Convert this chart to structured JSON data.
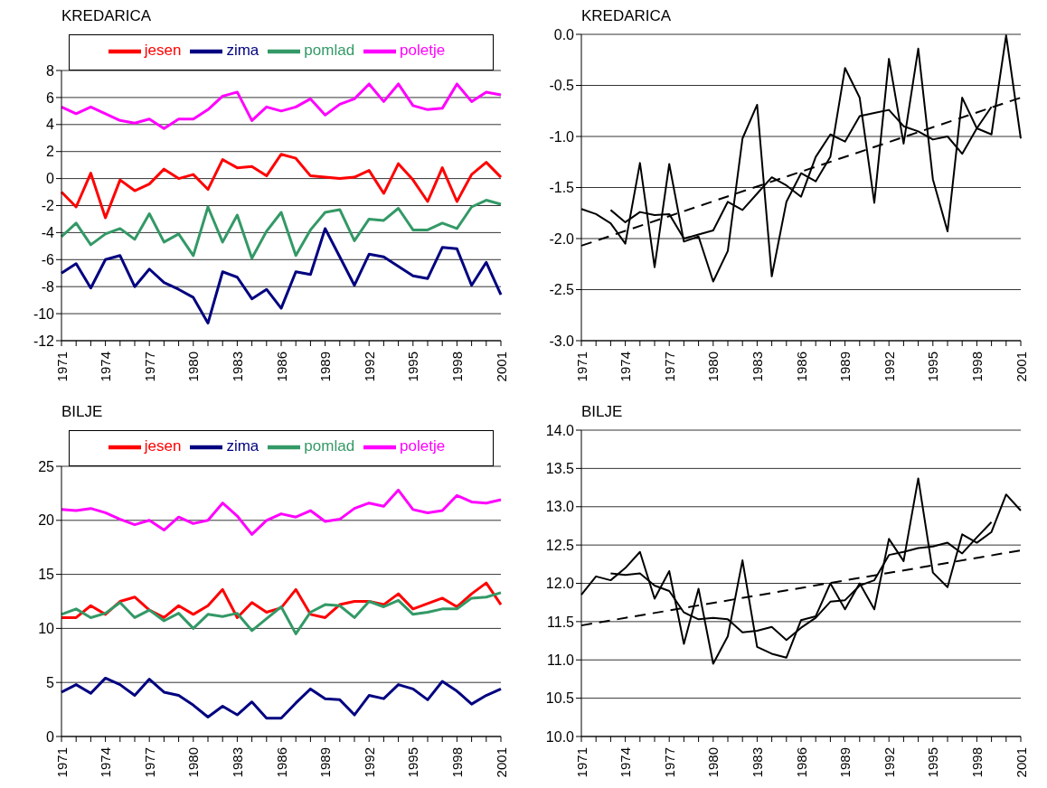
{
  "chart_data": [
    {
      "type": "line",
      "title": "KREDARICA",
      "categories": [
        "1971",
        null,
        null,
        "1974",
        null,
        null,
        "1977",
        null,
        null,
        "1980",
        null,
        null,
        "1983",
        null,
        null,
        "1986",
        null,
        null,
        "1989",
        null,
        null,
        "1992",
        null,
        null,
        "1995",
        null,
        null,
        "1998",
        null,
        null,
        "2001"
      ],
      "ylim": [
        -12,
        8
      ],
      "yticks": [
        -12,
        -10,
        -8,
        -6,
        -4,
        -2,
        0,
        2,
        4,
        6,
        8
      ],
      "grid": "y",
      "legend": "top",
      "marker": "none",
      "series": [
        {
          "name": "jesen",
          "color": "#ff0000",
          "values": [
            -1.0,
            -2.1,
            0.4,
            -2.9,
            -0.1,
            -0.9,
            -0.4,
            0.7,
            0.0,
            0.3,
            -0.8,
            1.4,
            0.8,
            0.9,
            0.2,
            1.8,
            1.5,
            0.2,
            0.1,
            0.0,
            0.1,
            0.6,
            -1.1,
            1.1,
            -0.1,
            -1.7,
            0.8,
            -1.7,
            0.3,
            1.2,
            0.1
          ]
        },
        {
          "name": "zima",
          "color": "#000080",
          "values": [
            -7.0,
            -6.3,
            -8.1,
            -6.0,
            -5.7,
            -8.0,
            -6.7,
            -7.7,
            -8.2,
            -8.8,
            -10.7,
            -6.9,
            -7.3,
            -8.9,
            -8.2,
            -9.6,
            -6.9,
            -7.1,
            -3.7,
            -5.8,
            -7.9,
            -5.6,
            -5.8,
            -6.5,
            -7.2,
            -7.4,
            -5.1,
            -5.2,
            -7.9,
            -6.2,
            -8.6
          ]
        },
        {
          "name": "pomlad",
          "color": "#339966",
          "values": [
            -4.3,
            -3.3,
            -4.9,
            -4.1,
            -3.7,
            -4.5,
            -2.6,
            -4.7,
            -4.1,
            -5.7,
            -2.1,
            -4.7,
            -2.7,
            -5.9,
            -3.9,
            -2.5,
            -5.7,
            -3.8,
            -2.5,
            -2.3,
            -4.6,
            -3.0,
            -3.1,
            -2.2,
            -3.8,
            -3.8,
            -3.3,
            -3.7,
            -2.1,
            -1.6,
            -1.9
          ]
        },
        {
          "name": "poletje",
          "color": "#ff00ff",
          "values": [
            5.3,
            4.8,
            5.3,
            4.8,
            4.3,
            4.1,
            4.4,
            3.7,
            4.4,
            4.4,
            5.1,
            6.1,
            6.4,
            4.3,
            5.3,
            5.0,
            5.3,
            5.9,
            4.7,
            5.5,
            5.9,
            7.0,
            5.7,
            7.0,
            5.4,
            5.1,
            5.2,
            7.0,
            5.7,
            6.4,
            6.2
          ]
        }
      ]
    },
    {
      "type": "line",
      "title": "KREDARICA",
      "categories": [
        "1971",
        null,
        null,
        "1974",
        null,
        null,
        "1977",
        null,
        null,
        "1980",
        null,
        null,
        "1983",
        null,
        null,
        "1986",
        null,
        null,
        "1989",
        null,
        null,
        "1992",
        null,
        null,
        "1995",
        null,
        null,
        "1998",
        null,
        null,
        "2001"
      ],
      "ylim": [
        -3,
        0
      ],
      "yticks": [
        {
          "value": -3,
          "label": "-3.0"
        },
        -2.5,
        {
          "value": -2,
          "label": "-2.0"
        },
        -1.5,
        {
          "value": -1,
          "label": "-1.0"
        },
        -0.5,
        {
          "value": 0,
          "label": "0.0"
        }
      ],
      "grid": "y",
      "marker": "none",
      "series": [
        {
          "color": "#000000",
          "line_style": "solid",
          "values": [
            -1.71,
            -1.76,
            -1.85,
            -2.05,
            -1.26,
            -2.28,
            -1.27,
            -2.03,
            -1.98,
            -2.42,
            -2.12,
            -1.02,
            -0.69,
            -2.37,
            -1.64,
            -1.36,
            -1.44,
            -1.2,
            -0.33,
            -0.62,
            -1.65,
            -0.24,
            -1.07,
            -0.14,
            -1.42,
            -1.93,
            -0.62,
            -0.92,
            -0.98,
            -0.01,
            -1.02
          ]
        },
        {
          "color": "#000000",
          "line_style": "solid",
          "values": [
            null,
            null,
            -1.72,
            -1.84,
            -1.74,
            -1.77,
            -1.76,
            -2.0,
            -1.96,
            -1.92,
            -1.64,
            -1.72,
            -1.56,
            -1.4,
            -1.48,
            -1.59,
            -1.2,
            -0.98,
            -1.05,
            -0.8,
            -0.77,
            -0.74,
            -0.9,
            -0.95,
            -1.03,
            -1.0,
            -1.17,
            -0.92,
            -0.71,
            null,
            null
          ]
        },
        {
          "color": "#000000",
          "line_style": "dashed",
          "values": [
            -2.07,
            null,
            null,
            null,
            null,
            null,
            null,
            null,
            null,
            null,
            null,
            null,
            null,
            null,
            null,
            null,
            null,
            null,
            null,
            null,
            null,
            null,
            null,
            null,
            null,
            null,
            null,
            null,
            null,
            null,
            -0.62
          ]
        }
      ]
    },
    {
      "type": "line",
      "title": "BILJE",
      "categories": [
        "1971",
        null,
        null,
        "1974",
        null,
        null,
        "1977",
        null,
        null,
        "1980",
        null,
        null,
        "1983",
        null,
        null,
        "1986",
        null,
        null,
        "1989",
        null,
        null,
        "1992",
        null,
        null,
        "1995",
        null,
        null,
        "1998",
        null,
        null,
        "2001"
      ],
      "ylim": [
        0,
        25
      ],
      "yticks": [
        0,
        5,
        10,
        15,
        20,
        25
      ],
      "grid": "y",
      "legend": "top",
      "marker": "none",
      "series": [
        {
          "name": "jesen",
          "color": "#ff0000",
          "values": [
            11.0,
            11.0,
            12.1,
            11.3,
            12.5,
            12.9,
            11.7,
            11.0,
            12.1,
            11.3,
            12.1,
            13.6,
            11.0,
            12.4,
            11.5,
            11.9,
            13.6,
            11.3,
            11.0,
            12.2,
            12.5,
            12.5,
            12.2,
            13.2,
            11.8,
            12.3,
            12.8,
            12.0,
            13.2,
            14.2,
            12.2
          ]
        },
        {
          "name": "zima",
          "color": "#000080",
          "values": [
            4.1,
            4.8,
            4.0,
            5.4,
            4.8,
            3.8,
            5.3,
            4.1,
            3.8,
            2.9,
            1.8,
            2.8,
            2.0,
            3.2,
            1.7,
            1.7,
            3.1,
            4.4,
            3.5,
            3.4,
            2.0,
            3.8,
            3.5,
            4.8,
            4.4,
            3.4,
            5.1,
            4.2,
            3.0,
            3.8,
            4.4
          ]
        },
        {
          "name": "pomlad",
          "color": "#339966",
          "values": [
            11.3,
            11.8,
            11.0,
            11.4,
            12.4,
            11.0,
            11.7,
            10.7,
            11.4,
            10.0,
            11.3,
            11.1,
            11.4,
            9.8,
            10.9,
            12.0,
            9.5,
            11.5,
            12.2,
            12.1,
            11.0,
            12.5,
            12.0,
            12.6,
            11.3,
            11.5,
            11.8,
            11.8,
            12.8,
            12.9,
            13.3
          ]
        },
        {
          "name": "poletje",
          "color": "#ff00ff",
          "values": [
            21.0,
            20.9,
            21.1,
            20.7,
            20.1,
            19.6,
            20.0,
            19.1,
            20.3,
            19.7,
            20.0,
            21.6,
            20.4,
            18.7,
            20.0,
            20.6,
            20.3,
            20.9,
            19.9,
            20.1,
            21.1,
            21.6,
            21.3,
            22.8,
            21.0,
            20.7,
            20.9,
            22.3,
            21.7,
            21.6,
            21.9
          ]
        }
      ]
    },
    {
      "type": "line",
      "title": "BILJE",
      "categories": [
        "1971",
        null,
        null,
        "1974",
        null,
        null,
        "1977",
        null,
        null,
        "1980",
        null,
        null,
        "1983",
        null,
        null,
        "1986",
        null,
        null,
        "1989",
        null,
        null,
        "1992",
        null,
        null,
        "1995",
        null,
        null,
        "1998",
        null,
        null,
        "2001"
      ],
      "ylim": [
        10,
        14
      ],
      "yticks": [
        {
          "value": 10,
          "label": "10.0"
        },
        10.5,
        {
          "value": 11,
          "label": "11.0"
        },
        11.5,
        {
          "value": 12,
          "label": "12.0"
        },
        12.5,
        {
          "value": 13,
          "label": "13.0"
        },
        13.5,
        {
          "value": 14,
          "label": "14.0"
        }
      ],
      "grid": "y",
      "marker": "none",
      "series": [
        {
          "color": "#000000",
          "line_style": "solid",
          "values": [
            11.85,
            12.09,
            12.04,
            12.2,
            12.41,
            11.8,
            12.16,
            11.21,
            11.93,
            10.95,
            11.31,
            12.3,
            11.17,
            11.08,
            11.03,
            11.52,
            11.57,
            12.0,
            11.66,
            12.0,
            11.66,
            12.58,
            12.29,
            13.37,
            12.14,
            11.95,
            12.64,
            12.53,
            12.67,
            13.16,
            12.95
          ]
        },
        {
          "color": "#000000",
          "line_style": "solid",
          "values": [
            null,
            null,
            12.13,
            12.11,
            12.13,
            11.97,
            11.9,
            11.62,
            11.53,
            11.55,
            11.53,
            11.36,
            11.38,
            11.43,
            11.26,
            11.42,
            11.55,
            11.76,
            11.78,
            11.97,
            12.04,
            12.37,
            12.41,
            12.46,
            12.48,
            12.53,
            12.39,
            12.6,
            12.8,
            null,
            null
          ]
        },
        {
          "color": "#000000",
          "line_style": "dashed",
          "values": [
            11.45,
            null,
            null,
            null,
            null,
            null,
            null,
            null,
            null,
            null,
            null,
            null,
            null,
            null,
            null,
            null,
            null,
            null,
            null,
            null,
            null,
            null,
            null,
            null,
            null,
            null,
            null,
            null,
            null,
            null,
            12.43
          ]
        }
      ]
    }
  ]
}
